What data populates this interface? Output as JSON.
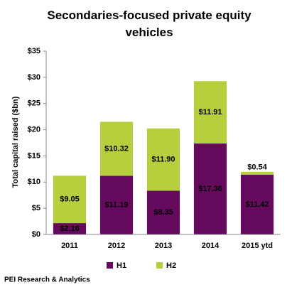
{
  "chart_data": {
    "type": "stacked_bar",
    "title": "Secondaries-focused private equity vehicles",
    "y_label": "Total capital raised ($bn)",
    "source": "PEI Research & Analytics",
    "categories": [
      "2011",
      "2012",
      "2013",
      "2014",
      "2015 ytd"
    ],
    "series": [
      {
        "name": "H1",
        "color": "#660a5e",
        "values": [
          2.16,
          11.19,
          8.35,
          17.36,
          11.42
        ],
        "value_labels": [
          "$2.16",
          "$11.19",
          "$8.35",
          "$17.36",
          "$11.42"
        ]
      },
      {
        "name": "H2",
        "color": "#b6cf3c",
        "values": [
          9.05,
          10.32,
          11.9,
          11.91,
          0.54
        ],
        "value_labels": [
          "$9.05",
          "$10.32",
          "$11.90",
          "$11.91",
          "$0.54"
        ]
      }
    ],
    "ylim": [
      0,
      35
    ],
    "yticks": [
      {
        "value": 0,
        "label": "$0"
      },
      {
        "value": 5,
        "label": "$5"
      },
      {
        "value": 10,
        "label": "$10"
      },
      {
        "value": 15,
        "label": "$15"
      },
      {
        "value": 20,
        "label": "$20"
      },
      {
        "value": 25,
        "label": "$25"
      },
      {
        "value": 30,
        "label": "$30"
      },
      {
        "value": 35,
        "label": "$35"
      }
    ],
    "grid": false,
    "legend": "bottom"
  }
}
